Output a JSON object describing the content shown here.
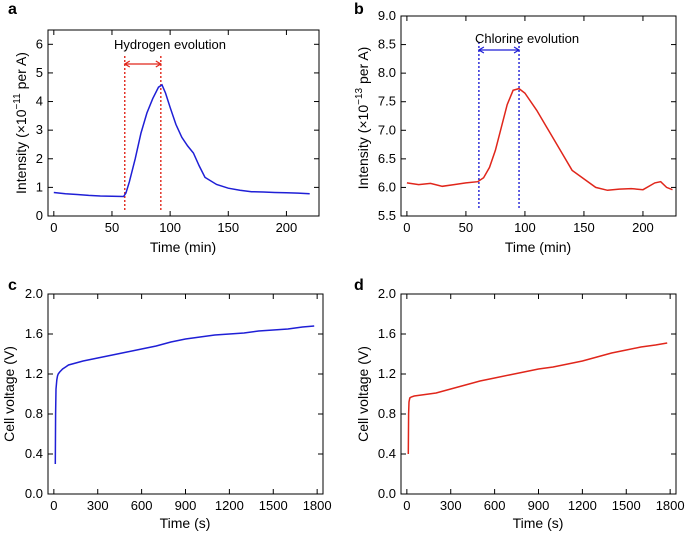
{
  "chart_data": [
    {
      "panel": "a",
      "type": "line",
      "title": "",
      "xlabel": "Time (min)",
      "ylabel_main": "Intensity (×10",
      "ylabel_exp": "−11",
      "ylabel_tail": " per A)",
      "xlim": [
        -5,
        228
      ],
      "ylim": [
        0,
        6.5
      ],
      "xticks": [
        0,
        50,
        100,
        150,
        200
      ],
      "yticks": [
        0,
        1,
        2,
        3,
        4,
        5,
        6
      ],
      "color": "#1f1fd6",
      "annotation": "Hydrogen evolution",
      "marker_lines": [
        61,
        92
      ],
      "marker_color": "#e0261b",
      "x": [
        0,
        10,
        20,
        30,
        40,
        50,
        60,
        62,
        65,
        70,
        75,
        80,
        85,
        90,
        93,
        96,
        100,
        105,
        110,
        115,
        120,
        125,
        130,
        140,
        150,
        160,
        170,
        180,
        190,
        200,
        210,
        220
      ],
      "y": [
        0.82,
        0.78,
        0.75,
        0.72,
        0.7,
        0.69,
        0.68,
        0.8,
        1.2,
        2.0,
        2.9,
        3.6,
        4.1,
        4.5,
        4.58,
        4.3,
        3.8,
        3.2,
        2.75,
        2.45,
        2.2,
        1.75,
        1.35,
        1.1,
        0.97,
        0.9,
        0.85,
        0.84,
        0.82,
        0.81,
        0.8,
        0.78
      ]
    },
    {
      "panel": "b",
      "type": "line",
      "title": "",
      "xlabel": "Time (min)",
      "ylabel_main": "Intensity (×10",
      "ylabel_exp": "−13",
      "ylabel_tail": " per A)",
      "xlim": [
        -5,
        228
      ],
      "ylim": [
        5.5,
        9.0
      ],
      "xticks": [
        0,
        50,
        100,
        150,
        200
      ],
      "yticks": [
        5.5,
        6.0,
        6.5,
        7.0,
        7.5,
        8.0,
        8.5,
        9.0
      ],
      "color": "#e0261b",
      "annotation": "Chlorine evolution",
      "marker_lines": [
        61,
        95
      ],
      "marker_color": "#1f1fd6",
      "x": [
        0,
        10,
        20,
        30,
        40,
        50,
        60,
        65,
        70,
        75,
        80,
        85,
        90,
        95,
        100,
        110,
        120,
        130,
        140,
        150,
        160,
        170,
        180,
        190,
        200,
        210,
        215,
        220,
        225
      ],
      "y": [
        6.08,
        6.05,
        6.07,
        6.02,
        6.05,
        6.08,
        6.1,
        6.17,
        6.35,
        6.65,
        7.05,
        7.45,
        7.7,
        7.73,
        7.65,
        7.35,
        7.0,
        6.65,
        6.3,
        6.15,
        6.0,
        5.95,
        5.97,
        5.98,
        5.96,
        6.08,
        6.1,
        6.0,
        5.96
      ]
    },
    {
      "panel": "c",
      "type": "line",
      "title": "",
      "xlabel": "Time (s)",
      "ylabel": "Cell voltage (V)",
      "xlim": [
        -40,
        1840
      ],
      "ylim": [
        0,
        2.0
      ],
      "xticks": [
        0,
        300,
        600,
        900,
        1200,
        1500,
        1800
      ],
      "yticks": [
        "0.0",
        "0.4",
        "0.8",
        "1.2",
        "1.6",
        "2.0"
      ],
      "color": "#1f1fd6",
      "x": [
        10,
        12,
        15,
        20,
        25,
        30,
        40,
        60,
        80,
        100,
        150,
        200,
        300,
        400,
        500,
        600,
        700,
        800,
        900,
        1000,
        1100,
        1200,
        1300,
        1400,
        1500,
        1600,
        1700,
        1780
      ],
      "y": [
        0.3,
        0.8,
        1.05,
        1.14,
        1.18,
        1.2,
        1.22,
        1.25,
        1.27,
        1.29,
        1.31,
        1.33,
        1.36,
        1.39,
        1.42,
        1.45,
        1.48,
        1.52,
        1.55,
        1.57,
        1.59,
        1.6,
        1.61,
        1.63,
        1.64,
        1.65,
        1.67,
        1.68
      ]
    },
    {
      "panel": "d",
      "type": "line",
      "title": "",
      "xlabel": "Time (s)",
      "ylabel": "Cell voltage (V)",
      "xlim": [
        -40,
        1840
      ],
      "ylim": [
        0,
        2.0
      ],
      "xticks": [
        0,
        300,
        600,
        900,
        1200,
        1500,
        1800
      ],
      "yticks": [
        "0.0",
        "0.4",
        "0.8",
        "1.2",
        "1.6",
        "2.0"
      ],
      "color": "#e0261b",
      "x": [
        10,
        12,
        15,
        20,
        30,
        50,
        100,
        200,
        300,
        400,
        500,
        600,
        700,
        800,
        900,
        1000,
        1100,
        1200,
        1300,
        1400,
        1500,
        1600,
        1700,
        1780
      ],
      "y": [
        0.4,
        0.8,
        0.92,
        0.96,
        0.97,
        0.98,
        0.99,
        1.01,
        1.05,
        1.09,
        1.13,
        1.16,
        1.19,
        1.22,
        1.25,
        1.27,
        1.3,
        1.33,
        1.37,
        1.41,
        1.44,
        1.47,
        1.49,
        1.51
      ]
    }
  ]
}
